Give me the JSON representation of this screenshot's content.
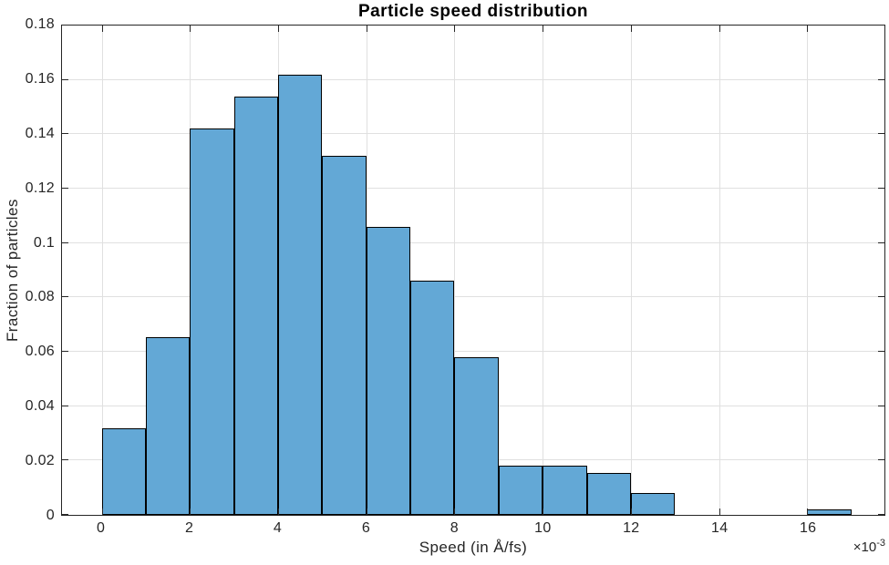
{
  "figure": {
    "title": "Particle speed distribution",
    "xlabel": "Speed (in Å/fs)",
    "ylabel": "Fraction of particles",
    "axis_multiplier": {
      "base": "×10",
      "exponent": "-3"
    }
  },
  "chart_data": {
    "type": "bar",
    "subtype": "histogram",
    "title": "Particle speed distribution",
    "xlabel": "Speed (in Å/fs)",
    "ylabel": "Fraction of particles",
    "x_unit_multiplier": "1e-3",
    "bin_edges": [
      0,
      1,
      2,
      3,
      4,
      5,
      6,
      7,
      8,
      9,
      10,
      11,
      12,
      13,
      14,
      15,
      16,
      17
    ],
    "values": [
      0.032,
      0.0655,
      0.142,
      0.154,
      0.162,
      0.132,
      0.106,
      0.086,
      0.058,
      0.018,
      0.018,
      0.0155,
      0.008,
      0,
      0,
      0,
      0.002
    ],
    "x_ticks": [
      0,
      2,
      4,
      6,
      8,
      10,
      12,
      14,
      16
    ],
    "x_tick_labels": [
      "0",
      "2",
      "4",
      "6",
      "8",
      "10",
      "12",
      "14",
      "16"
    ],
    "y_ticks": [
      0,
      0.02,
      0.04,
      0.06,
      0.08,
      0.1,
      0.12,
      0.14,
      0.16,
      0.18
    ],
    "y_tick_labels": [
      "0",
      "0.02",
      "0.04",
      "0.06",
      "0.08",
      "0.1",
      "0.12",
      "0.14",
      "0.16",
      "0.18"
    ],
    "xlim": [
      -0.9,
      17.75
    ],
    "ylim": [
      0,
      0.18
    ],
    "grid": true,
    "legend": null,
    "bar_color": "#63A8D6",
    "bar_edge_color": "#000000",
    "grid_color": "#E0E0E0",
    "axis_color": "#262626"
  }
}
